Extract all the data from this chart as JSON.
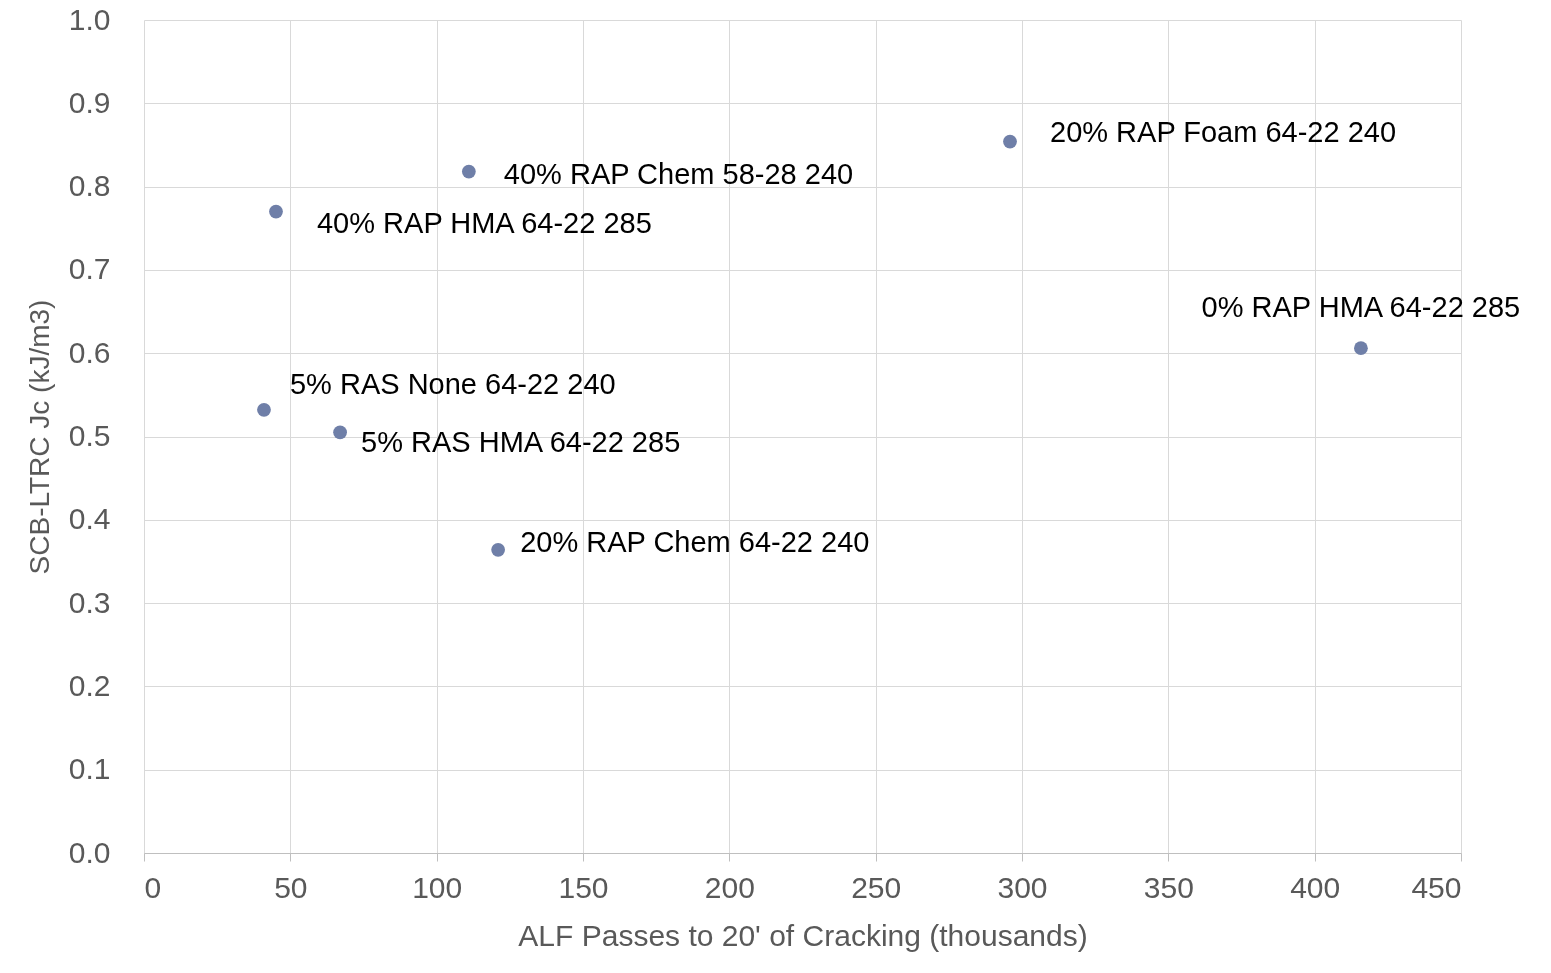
{
  "chart_data": {
    "type": "scatter",
    "xlabel": "ALF Passes to 20' of Cracking (thousands)",
    "ylabel": "SCB-LTRC Jc (kJ/m3)",
    "x": [
      41.0,
      45.1,
      67.0,
      111.0,
      121.0,
      295.9,
      415.8
    ],
    "values": [
      0.532,
      0.77,
      0.505,
      0.818,
      0.364,
      0.854,
      0.606
    ],
    "color": "#6f7fa8",
    "marker": "circle",
    "grid": true,
    "xlim": [
      0,
      450
    ],
    "xticks": [
      0,
      50,
      100,
      150,
      200,
      250,
      300,
      350,
      400,
      450
    ],
    "ylim": [
      0,
      1
    ],
    "yticks": [
      {
        "value": 0,
        "label": "0.0"
      },
      {
        "value": 0.1,
        "label": "0.1"
      },
      {
        "value": 0.2,
        "label": "0.2"
      },
      {
        "value": 0.3,
        "label": "0.3"
      },
      {
        "value": 0.4,
        "label": "0.4"
      },
      {
        "value": 0.5,
        "label": "0.5"
      },
      {
        "value": 0.6,
        "label": "0.6"
      },
      {
        "value": 0.7,
        "label": "0.7"
      },
      {
        "value": 0.8,
        "label": "0.8"
      },
      {
        "value": 0.9,
        "label": "0.9"
      },
      {
        "value": 1,
        "label": "1.0"
      }
    ],
    "annotations": [
      {
        "text": "5% RAS None 64-22 240",
        "x": 41.0,
        "y": 0.532
      },
      {
        "text": "40% RAP HMA 64-22 285",
        "x": 45.1,
        "y": 0.77
      },
      {
        "text": "5% RAS HMA 64-22 285",
        "x": 67.0,
        "y": 0.505
      },
      {
        "text": "40% RAP Chem 58-28 240",
        "x": 111.0,
        "y": 0.818
      },
      {
        "text": "20% RAP Chem 64-22 240",
        "x": 121.0,
        "y": 0.364
      },
      {
        "text": "20% RAP Foam 64-22 240",
        "x": 295.9,
        "y": 0.854
      },
      {
        "text": "0% RAP HMA 64-22 285",
        "x": 415.8,
        "y": 0.606
      }
    ]
  }
}
